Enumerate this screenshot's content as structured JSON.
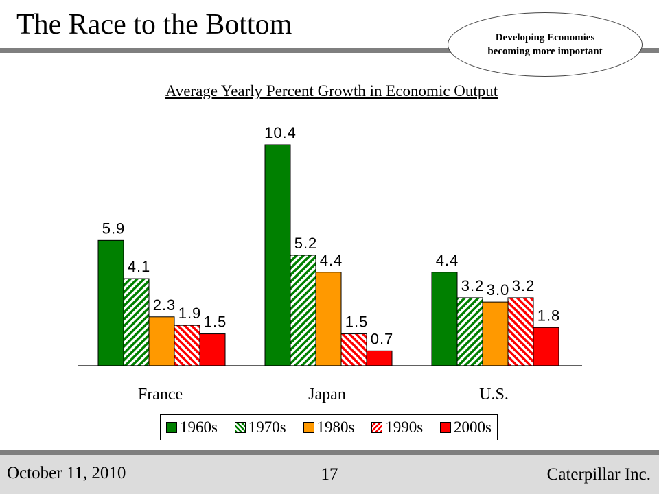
{
  "slide": {
    "title": "The Race to the Bottom",
    "callout": "Developing Economies becoming more important"
  },
  "colors": {
    "1960s": "#008000",
    "1970s": "#008000",
    "1980s": "#ff9900",
    "1990s": "#ff0000",
    "2000s": "#ff0000",
    "rule": "#7f7f7f",
    "footer": "#dcdcdc"
  },
  "chart_data": {
    "type": "bar",
    "title": "Average Yearly Percent Growth in Economic Output",
    "categories": [
      "France",
      "Japan",
      "U.S."
    ],
    "series": [
      {
        "name": "1960s",
        "values": [
          5.9,
          10.4,
          4.4
        ],
        "labels": [
          "5.9",
          "10.4",
          "4.4"
        ],
        "pattern": "solid"
      },
      {
        "name": "1970s",
        "values": [
          4.1,
          5.2,
          3.2
        ],
        "labels": [
          "4.1",
          "5.2",
          "3.2"
        ],
        "pattern": "hatch"
      },
      {
        "name": "1980s",
        "values": [
          2.3,
          4.4,
          3.0
        ],
        "labels": [
          "2.3",
          "4.4",
          "3.0"
        ],
        "pattern": "solid"
      },
      {
        "name": "1990s",
        "values": [
          1.9,
          1.5,
          3.2
        ],
        "labels": [
          "1.9",
          "1.5",
          "3.2"
        ],
        "pattern": "hatch"
      },
      {
        "name": "2000s",
        "values": [
          1.5,
          0.7,
          1.8
        ],
        "labels": [
          "1.5",
          "0.7",
          "1.8"
        ],
        "pattern": "solid"
      }
    ],
    "ylim": [
      0,
      10.4
    ],
    "grid": false,
    "legend_position": "bottom"
  },
  "footer": {
    "date": "October 11, 2010",
    "page": "17",
    "company": "Caterpillar Inc."
  }
}
